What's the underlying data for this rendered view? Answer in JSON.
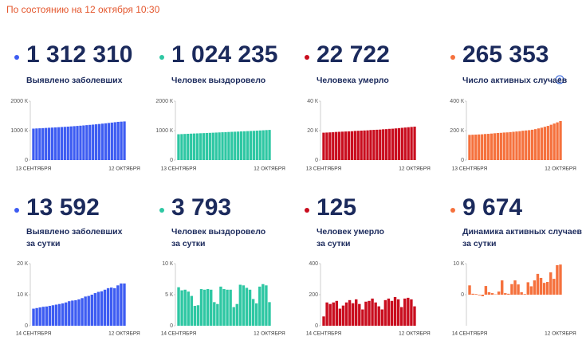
{
  "header": {
    "title": "По состоянию на 12 октября 10:30"
  },
  "chart_data": [
    {
      "type": "bar",
      "headline": "1 312 310",
      "label": [
        "Выявлено заболевших"
      ],
      "color": "#3d5cf2",
      "categories": [
        "13 СЕНТЯБРЯ",
        null,
        null,
        null,
        null,
        null,
        null,
        null,
        null,
        null,
        null,
        null,
        null,
        null,
        null,
        null,
        null,
        null,
        null,
        null,
        null,
        null,
        null,
        null,
        null,
        null,
        null,
        null,
        null,
        "12 ОКТЯБРЯ"
      ],
      "values": [
        1068,
        1074,
        1079,
        1085,
        1091,
        1097,
        1103,
        1109,
        1115,
        1122,
        1128,
        1135,
        1143,
        1151,
        1159,
        1167,
        1176,
        1186,
        1195,
        1204,
        1214,
        1225,
        1237,
        1248,
        1260,
        1272,
        1285,
        1298,
        1305,
        1312
      ],
      "ylim": [
        0,
        2000
      ],
      "yticks": [
        0,
        {
          "value": 1000,
          "label": "1000 К"
        },
        {
          "value": 2000,
          "label": "2000 К"
        }
      ]
    },
    {
      "type": "bar",
      "headline": "1 024 235",
      "label": [
        "Человек выздоровело"
      ],
      "color": "#2ec7a3",
      "categories": [
        "13 СЕНТЯБРЯ",
        null,
        null,
        null,
        null,
        null,
        null,
        null,
        null,
        null,
        null,
        null,
        null,
        null,
        null,
        null,
        null,
        null,
        null,
        null,
        null,
        null,
        null,
        null,
        null,
        null,
        null,
        null,
        null,
        "12 ОКТЯБРЯ"
      ],
      "values": [
        877,
        882,
        887,
        892,
        897,
        902,
        906,
        911,
        915,
        920,
        924,
        929,
        934,
        939,
        944,
        949,
        954,
        959,
        963,
        968,
        973,
        978,
        983,
        988,
        993,
        999,
        1005,
        1011,
        1018,
        1024
      ],
      "ylim": [
        0,
        2000
      ],
      "yticks": [
        0,
        {
          "value": 1000,
          "label": "1000 К"
        },
        {
          "value": 2000,
          "label": "2000 К"
        }
      ]
    },
    {
      "type": "bar",
      "headline": "22 722",
      "label": [
        "Человека умерло"
      ],
      "color": "#c90d1e",
      "categories": [
        "13 СЕНТЯБРЯ",
        null,
        null,
        null,
        null,
        null,
        null,
        null,
        null,
        null,
        null,
        null,
        null,
        null,
        null,
        null,
        null,
        null,
        null,
        null,
        null,
        null,
        null,
        null,
        null,
        null,
        null,
        null,
        null,
        "12 ОКТЯБРЯ"
      ],
      "values": [
        18.6,
        18.7,
        18.8,
        18.9,
        19.1,
        19.2,
        19.3,
        19.4,
        19.5,
        19.6,
        19.8,
        19.9,
        20.0,
        20.1,
        20.2,
        20.4,
        20.5,
        20.6,
        20.7,
        20.9,
        21.0,
        21.2,
        21.3,
        21.5,
        21.7,
        21.9,
        22.1,
        22.3,
        22.5,
        22.7
      ],
      "ylim": [
        0,
        40
      ],
      "yticks": [
        0,
        {
          "value": 20,
          "label": "20 К"
        },
        {
          "value": 40,
          "label": "40 К"
        }
      ]
    },
    {
      "type": "bar",
      "headline": "265 353",
      "label": [
        "Число активных случаев"
      ],
      "color": "#f5713d",
      "categories": [
        "13 СЕНТЯБРЯ",
        null,
        null,
        null,
        null,
        null,
        null,
        null,
        null,
        null,
        null,
        null,
        null,
        null,
        null,
        null,
        null,
        null,
        null,
        null,
        null,
        null,
        null,
        null,
        null,
        null,
        null,
        null,
        null,
        "12 ОКТЯБРЯ"
      ],
      "values": [
        171,
        172,
        173,
        174,
        175,
        177,
        178,
        180,
        182,
        184,
        185,
        187,
        188,
        190,
        192,
        194,
        196,
        199,
        201,
        203,
        206,
        210,
        215,
        220,
        226,
        232,
        240,
        248,
        256,
        265
      ],
      "ylim": [
        0,
        400
      ],
      "yticks": [
        0,
        {
          "value": 200,
          "label": "200 К"
        },
        {
          "value": 400,
          "label": "400 К"
        }
      ]
    },
    {
      "type": "bar",
      "headline": "13 592",
      "label": [
        "Выявлено заболевших",
        "за сутки"
      ],
      "color": "#3d5cf2",
      "categories": [
        "14 СЕНТЯБРЯ",
        null,
        null,
        null,
        null,
        null,
        null,
        null,
        null,
        null,
        null,
        null,
        null,
        null,
        null,
        null,
        null,
        null,
        null,
        null,
        null,
        null,
        null,
        null,
        null,
        null,
        null,
        null,
        "12 ОКТЯБРЯ"
      ],
      "values": [
        5.5,
        5.7,
        5.9,
        6.1,
        6.2,
        6.4,
        6.6,
        6.8,
        7.0,
        7.2,
        7.5,
        7.9,
        8.1,
        8.2,
        8.5,
        8.9,
        9.4,
        9.6,
        10.0,
        10.5,
        10.9,
        11.1,
        11.6,
        12.1,
        12.3,
        12.1,
        13.0,
        13.6,
        13.6
      ],
      "ylim": [
        0,
        20
      ],
      "yticks": [
        0,
        {
          "value": 10,
          "label": "10 К"
        },
        {
          "value": 20,
          "label": "20 К"
        }
      ]
    },
    {
      "type": "bar",
      "headline": "3 793",
      "label": [
        "Человек выздоровело",
        "за сутки"
      ],
      "color": "#2ec7a3",
      "categories": [
        "14 СЕНТЯБРЯ",
        null,
        null,
        null,
        null,
        null,
        null,
        null,
        null,
        null,
        null,
        null,
        null,
        null,
        null,
        null,
        null,
        null,
        null,
        null,
        null,
        null,
        null,
        null,
        null,
        null,
        null,
        null,
        "12 ОКТЯБРЯ"
      ],
      "values": [
        6.2,
        5.7,
        5.8,
        5.5,
        4.8,
        3.2,
        3.3,
        5.9,
        5.8,
        5.9,
        5.8,
        3.8,
        3.5,
        6.3,
        5.9,
        5.8,
        5.8,
        3.0,
        3.5,
        6.6,
        6.5,
        6.1,
        5.8,
        4.3,
        3.6,
        6.3,
        6.7,
        6.5,
        3.8
      ],
      "ylim": [
        0,
        10
      ],
      "yticks": [
        0,
        {
          "value": 5,
          "label": "5 К"
        },
        {
          "value": 10,
          "label": "10 К"
        }
      ]
    },
    {
      "type": "bar",
      "headline": "125",
      "label": [
        "Человек умерло",
        "за сутки"
      ],
      "color": "#c90d1e",
      "categories": [
        "14 СЕНТЯБРЯ",
        null,
        null,
        null,
        null,
        null,
        null,
        null,
        null,
        null,
        null,
        null,
        null,
        null,
        null,
        null,
        null,
        null,
        null,
        null,
        null,
        null,
        null,
        null,
        null,
        null,
        null,
        null,
        "12 ОКТЯБРЯ"
      ],
      "values": [
        60,
        150,
        140,
        150,
        160,
        110,
        130,
        150,
        165,
        145,
        170,
        140,
        105,
        155,
        160,
        175,
        150,
        125,
        105,
        165,
        175,
        160,
        185,
        170,
        120,
        175,
        180,
        170,
        125
      ],
      "ylim": [
        0,
        400
      ],
      "yticks": [
        0,
        200,
        400
      ]
    },
    {
      "type": "bar",
      "headline": "9 674",
      "label": [
        "Динамика активных случаев",
        "за сутки"
      ],
      "color": "#f5713d",
      "categories": [
        "14 СЕНТЯБРЯ",
        null,
        null,
        null,
        null,
        null,
        null,
        null,
        null,
        null,
        null,
        null,
        null,
        null,
        null,
        null,
        null,
        null,
        null,
        null,
        null,
        null,
        null,
        null,
        null,
        null,
        null,
        null,
        "12 ОКТЯБРЯ"
      ],
      "values": [
        3.0,
        0.3,
        0.2,
        -0.2,
        -0.5,
        2.8,
        0.8,
        0.5,
        0.1,
        1.0,
        4.6,
        0.5,
        0.3,
        3.4,
        4.6,
        3.3,
        0.8,
        0.2,
        4.0,
        2.7,
        4.6,
        6.7,
        5.4,
        3.8,
        4.1,
        7.2,
        5.1,
        9.5,
        9.7
      ],
      "ylim": [
        -10,
        10
      ],
      "yticks": [
        0,
        {
          "value": 10,
          "label": "10 К"
        }
      ]
    }
  ]
}
